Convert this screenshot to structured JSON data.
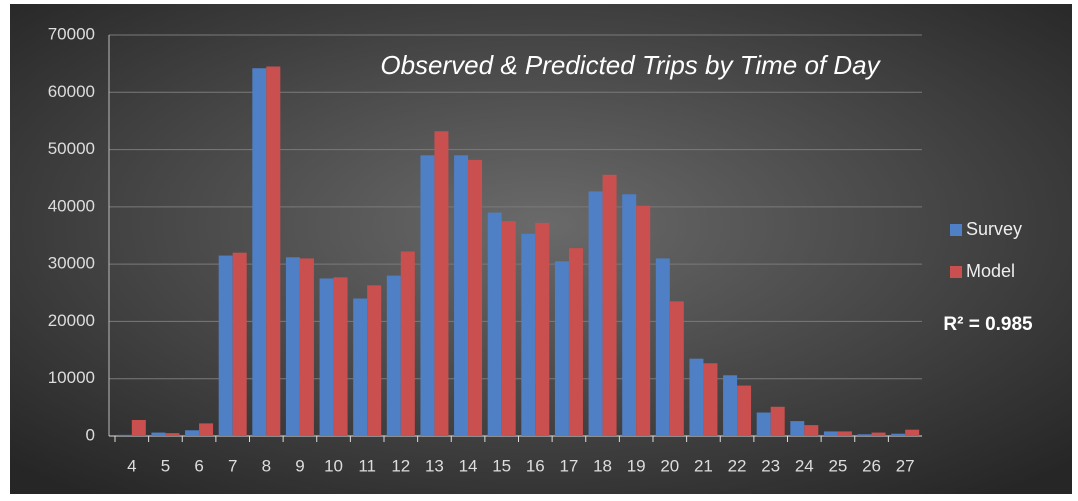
{
  "chart_data": {
    "type": "bar",
    "title": "Observed & Predicted Trips by Time of Day",
    "annotation": "R² = 0.985",
    "categories": [
      "4",
      "5",
      "6",
      "7",
      "8",
      "9",
      "10",
      "11",
      "12",
      "13",
      "14",
      "15",
      "16",
      "17",
      "18",
      "19",
      "20",
      "21",
      "22",
      "23",
      "24",
      "25",
      "26",
      "27"
    ],
    "series": [
      {
        "name": "Survey",
        "color": "#4f7fc4",
        "values": [
          200,
          600,
          1000,
          31500,
          64200,
          31200,
          27500,
          24000,
          28000,
          49000,
          49000,
          39000,
          35300,
          30500,
          42700,
          42200,
          31000,
          13500,
          10600,
          4100,
          2600,
          800,
          300,
          400
        ]
      },
      {
        "name": "Model",
        "color": "#c9504f",
        "values": [
          2800,
          500,
          2200,
          32000,
          64500,
          31000,
          27700,
          26300,
          32200,
          53200,
          48200,
          37500,
          37200,
          32800,
          45600,
          40200,
          23500,
          12700,
          8800,
          5100,
          1900,
          800,
          600,
          1100
        ]
      }
    ],
    "ylim": [
      0,
      70000
    ],
    "yticks": [
      0,
      10000,
      20000,
      30000,
      40000,
      50000,
      60000,
      70000
    ],
    "grid": true,
    "legend": "right"
  }
}
